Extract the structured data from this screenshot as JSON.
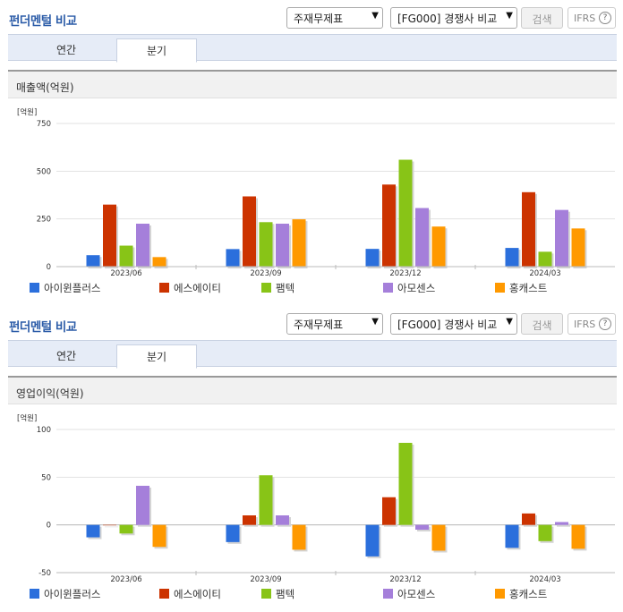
{
  "panels": [
    {
      "title": "펀더멘털 비교",
      "select1": "주재무제표",
      "select2": "[FG000] 경쟁사 비교",
      "search_label": "검색",
      "ifrs_label": "IFRS",
      "ifrs_help": "?",
      "tabs": [
        {
          "label": "연간"
        },
        {
          "label": "분기"
        }
      ],
      "active_tab": 1,
      "chart_title": "매출액(억원)"
    },
    {
      "title": "펀더멘털 비교",
      "select1": "주재무제표",
      "select2": "[FG000] 경쟁사 비교",
      "search_label": "검색",
      "ifrs_label": "IFRS",
      "ifrs_help": "?",
      "tabs": [
        {
          "label": "연간"
        },
        {
          "label": "분기"
        }
      ],
      "active_tab": 1,
      "chart_title": "영업이익(억원)"
    }
  ],
  "chart_data": [
    {
      "type": "bar",
      "title": "매출액(억원)",
      "ylabel": "[억원]",
      "ylim": [
        0,
        750
      ],
      "yticks": [
        0,
        250,
        500,
        750
      ],
      "categories": [
        "2023/06",
        "2023/09",
        "2023/12",
        "2024/03"
      ],
      "grid": true,
      "legend": "bottom",
      "series": [
        {
          "name": "아이윈플러스",
          "color": "#2b6fdc",
          "values": [
            60,
            92,
            93,
            98
          ]
        },
        {
          "name": "에스에이티",
          "color": "#cc3300",
          "values": [
            325,
            368,
            430,
            390
          ]
        },
        {
          "name": "팸텍",
          "color": "#88c417",
          "values": [
            110,
            233,
            560,
            78
          ]
        },
        {
          "name": "아모센스",
          "color": "#a57fda",
          "values": [
            225,
            225,
            307,
            297
          ]
        },
        {
          "name": "홍캐스트",
          "color": "#ff9900",
          "values": [
            50,
            248,
            210,
            200
          ]
        }
      ]
    },
    {
      "type": "bar",
      "title": "영업이익(억원)",
      "ylabel": "[억원]",
      "ylim": [
        -50,
        100
      ],
      "yticks": [
        -50,
        0,
        50,
        100
      ],
      "categories": [
        "2023/06",
        "2023/09",
        "2023/12",
        "2024/03"
      ],
      "grid": true,
      "legend": "bottom",
      "series": [
        {
          "name": "아이윈플러스",
          "color": "#2b6fdc",
          "values": [
            -13,
            -18,
            -33,
            -24
          ]
        },
        {
          "name": "에스에이티",
          "color": "#cc3300",
          "values": [
            0,
            10,
            29,
            12
          ]
        },
        {
          "name": "팸텍",
          "color": "#88c417",
          "values": [
            -9,
            52,
            86,
            -17
          ]
        },
        {
          "name": "아모센스",
          "color": "#a57fda",
          "values": [
            41,
            10,
            -5,
            3
          ]
        },
        {
          "name": "홍캐스트",
          "color": "#ff9900",
          "values": [
            -23,
            -26,
            -27,
            -25
          ]
        }
      ]
    }
  ]
}
